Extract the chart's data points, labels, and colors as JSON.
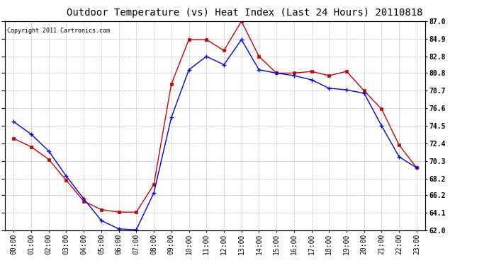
{
  "title": "Outdoor Temperature (vs) Heat Index (Last 24 Hours) 20110818",
  "copyright": "Copyright 2011 Cartronics.com",
  "x_labels": [
    "00:00",
    "01:00",
    "02:00",
    "03:00",
    "04:00",
    "05:00",
    "06:00",
    "07:00",
    "08:00",
    "09:00",
    "10:00",
    "11:00",
    "12:00",
    "13:00",
    "14:00",
    "15:00",
    "16:00",
    "17:00",
    "18:00",
    "19:00",
    "20:00",
    "21:00",
    "22:00",
    "23:00"
  ],
  "temp_blue": [
    75.0,
    73.5,
    71.5,
    68.5,
    65.8,
    63.2,
    62.2,
    62.1,
    66.5,
    75.5,
    81.2,
    82.8,
    81.8,
    84.8,
    81.2,
    80.8,
    80.5,
    80.0,
    79.0,
    78.8,
    78.4,
    74.5,
    70.8,
    69.5
  ],
  "heat_red": [
    73.0,
    72.0,
    70.5,
    68.0,
    65.5,
    64.5,
    64.2,
    64.2,
    67.5,
    79.5,
    84.8,
    84.8,
    83.5,
    87.0,
    82.8,
    80.8,
    80.8,
    81.0,
    80.5,
    81.0,
    78.7,
    76.5,
    72.2,
    69.5
  ],
  "ylim_min": 62.0,
  "ylim_max": 87.0,
  "yticks": [
    62.0,
    64.1,
    66.2,
    68.2,
    70.3,
    72.4,
    74.5,
    76.6,
    78.7,
    80.8,
    82.8,
    84.9,
    87.0
  ],
  "blue_color": "#0000dd",
  "red_color": "#cc0000",
  "bg_color": "#ffffff",
  "grid_color": "#bbbbbb",
  "title_fontsize": 10,
  "tick_fontsize": 7,
  "copyright_fontsize": 6
}
